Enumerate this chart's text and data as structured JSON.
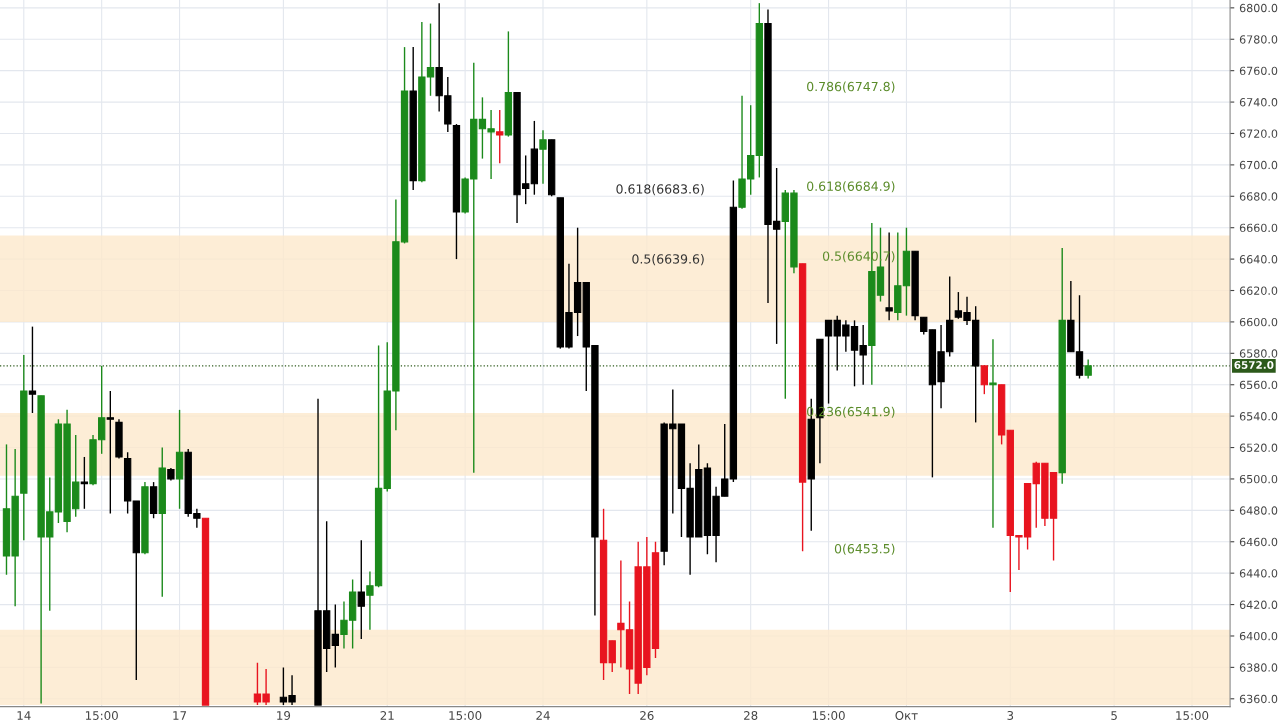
{
  "chart_data": {
    "type": "candlestick",
    "categories": [
      null,
      null,
      "14",
      null,
      null,
      null,
      null,
      null,
      null,
      null,
      null,
      "15:00",
      null,
      null,
      null,
      null,
      null,
      null,
      null,
      null,
      "17",
      null,
      null,
      null,
      null,
      null,
      null,
      null,
      null,
      null,
      null,
      null,
      "19",
      null,
      null,
      null,
      null,
      null,
      null,
      null,
      null,
      null,
      null,
      null,
      "21",
      null,
      null,
      null,
      null,
      null,
      null,
      null,
      null,
      "15:00",
      null,
      null,
      null,
      null,
      null,
      null,
      null,
      null,
      "24",
      null,
      null,
      null,
      null,
      null,
      null,
      null,
      null,
      null,
      null,
      null,
      "26",
      null,
      null,
      null,
      null,
      null,
      null,
      null,
      null,
      null,
      null,
      null,
      "28",
      null,
      null,
      null,
      null,
      null,
      null,
      null,
      null,
      "15:00",
      null,
      null,
      null,
      null,
      null,
      null,
      null,
      null,
      "Окт",
      null,
      null,
      null,
      null,
      null,
      null,
      null,
      null,
      null,
      null,
      null,
      "3",
      null,
      null,
      null,
      null,
      null,
      null,
      null,
      null,
      null,
      null,
      null,
      "5",
      null,
      null,
      null,
      null,
      null,
      null,
      null,
      null,
      "15:00",
      null,
      null,
      null,
      null
    ],
    "ohlc": [
      [
        6451,
        6522,
        6439,
        6481
      ],
      [
        6451,
        6519,
        6419,
        6489
      ],
      [
        6491,
        6579,
        6461,
        6556
      ],
      [
        6556,
        6597,
        6542,
        6554
      ],
      [
        6463,
        6553,
        6357,
        6553
      ],
      [
        6463,
        6501,
        6416,
        6479
      ],
      [
        6479,
        6538,
        6472,
        6535
      ],
      [
        6473,
        6544,
        6466,
        6535
      ],
      [
        6481,
        6528,
        6476,
        6498
      ],
      [
        6498,
        6514,
        6481,
        6497
      ],
      [
        6497,
        6528,
        6496,
        6525
      ],
      [
        6525,
        6572,
        6516,
        6539
      ],
      [
        6539,
        6556,
        6478,
        6538
      ],
      [
        6536,
        6538,
        6513,
        6514
      ],
      [
        6513,
        6517,
        6478,
        6486
      ],
      [
        6486,
        6486,
        6372,
        6453
      ],
      [
        6453,
        6498,
        6452,
        6495
      ],
      [
        6495,
        6498,
        6475,
        6478
      ],
      [
        6478,
        6520,
        6425,
        6507
      ],
      [
        6506,
        6507,
        6499,
        6500
      ],
      [
        6500,
        6544,
        6481,
        6517
      ],
      [
        6517,
        6519,
        6476,
        6478
      ],
      [
        6478,
        6481,
        6469,
        6475
      ],
      [
        6475,
        6475,
        6356,
        6356
      ],
      null,
      null,
      null,
      null,
      null,
      [
        6363,
        6383,
        6356,
        6358
      ],
      [
        6363,
        6379,
        6356,
        6358
      ],
      null,
      [
        6361,
        6380,
        6356,
        6358
      ],
      [
        6362,
        6375,
        6356,
        6358
      ],
      null,
      null,
      [
        6416,
        6551,
        6356,
        6356
      ],
      [
        6416,
        6473,
        6377,
        6392
      ],
      [
        6401,
        6420,
        6380,
        6394
      ],
      [
        6401,
        6422,
        6392,
        6410
      ],
      [
        6410,
        6436,
        6392,
        6428
      ],
      [
        6428,
        6461,
        6398,
        6419
      ],
      [
        6426,
        6441,
        6404,
        6432
      ],
      [
        6432,
        6585,
        6431,
        6494
      ],
      [
        6494,
        6587,
        6492,
        6556
      ],
      [
        6556,
        6678,
        6531,
        6651
      ],
      [
        6651,
        6775,
        6650,
        6747
      ],
      [
        6747,
        6775,
        6684,
        6690
      ],
      [
        6690,
        6791,
        6689,
        6756
      ],
      [
        6756,
        6790,
        6744,
        6762
      ],
      [
        6762,
        6803,
        6734,
        6744
      ],
      [
        6744,
        6756,
        6721,
        6726
      ],
      [
        6725,
        6726,
        6640,
        6670
      ],
      [
        6670,
        6692,
        6669,
        6691
      ],
      [
        6691,
        6765,
        6504,
        6729
      ],
      [
        6723,
        6743,
        6704,
        6729
      ],
      [
        6721,
        6735,
        6691,
        6723
      ],
      [
        6721,
        6735,
        6701,
        6719
      ],
      [
        6719,
        6785,
        6718,
        6746
      ],
      [
        6746,
        6746,
        6663,
        6681
      ],
      [
        6688,
        6706,
        6675,
        6685
      ],
      [
        6710,
        6728,
        6681,
        6688
      ],
      [
        6710,
        6722,
        6688,
        6716
      ],
      [
        6716,
        6716,
        6680,
        6681
      ],
      [
        6679,
        6679,
        6583,
        6584
      ],
      [
        6606,
        6637,
        6583,
        6584
      ],
      [
        6625,
        6660,
        6591,
        6606
      ],
      [
        6625,
        6625,
        6556,
        6584
      ],
      [
        6585,
        6585,
        6413,
        6463
      ],
      [
        6461,
        6481,
        6372,
        6383
      ],
      [
        6397,
        6397,
        6377,
        6383
      ],
      [
        6408,
        6448,
        6380,
        6404
      ],
      [
        6404,
        6422,
        6363,
        6379
      ],
      [
        6444,
        6460,
        6363,
        6370
      ],
      [
        6444,
        6463,
        6375,
        6380
      ],
      [
        6453,
        6460,
        6386,
        6392
      ],
      [
        6535,
        6536,
        6445,
        6454
      ],
      [
        6535,
        6557,
        6478,
        6532
      ],
      [
        6535,
        6535,
        6463,
        6494
      ],
      [
        6494,
        6510,
        6439,
        6463
      ],
      [
        6506,
        6522,
        6463,
        6463
      ],
      [
        6507,
        6510,
        6452,
        6464
      ],
      [
        6489,
        6495,
        6447,
        6464
      ],
      [
        6500,
        6535,
        6489,
        6489
      ],
      [
        6673,
        6690,
        6498,
        6500
      ],
      [
        6673,
        6744,
        6672,
        6691
      ],
      [
        6691,
        6738,
        6681,
        6706
      ],
      [
        6706,
        6803,
        6692,
        6790
      ],
      [
        6790,
        6799,
        6612,
        6662
      ],
      [
        6664,
        6698,
        6586,
        6659
      ],
      [
        6664,
        6684,
        6551,
        6682
      ],
      [
        6635,
        6684,
        6631,
        6682
      ],
      [
        6637,
        6637,
        6454,
        6498
      ],
      [
        6538,
        6551,
        6467,
        6500
      ],
      [
        6589,
        6589,
        6510,
        6539
      ],
      [
        6601,
        6601,
        6548,
        6591
      ],
      [
        6601,
        6604,
        6569,
        6591
      ],
      [
        6598,
        6601,
        6581,
        6591
      ],
      [
        6597,
        6601,
        6559,
        6582
      ],
      [
        6585,
        6598,
        6560,
        6579
      ],
      [
        6585,
        6663,
        6560,
        6632
      ],
      [
        6617,
        6660,
        6613,
        6635
      ],
      [
        6609,
        6657,
        6601,
        6607
      ],
      [
        6606,
        6657,
        6601,
        6623
      ],
      [
        6623,
        6660,
        6604,
        6645
      ],
      [
        6645,
        6645,
        6601,
        6604
      ],
      [
        6603,
        6603,
        6592,
        6594
      ],
      [
        6595,
        6595,
        6501,
        6560
      ],
      [
        6581,
        6598,
        6545,
        6562
      ],
      [
        6601,
        6629,
        6578,
        6581
      ],
      [
        6607,
        6619,
        6602,
        6603
      ],
      [
        6606,
        6616,
        6598,
        6601
      ],
      [
        6601,
        6610,
        6536,
        6572
      ],
      [
        6572,
        6572,
        6554,
        6560
      ],
      [
        6560,
        6589,
        6469,
        6561
      ],
      [
        6560,
        6560,
        6522,
        6528
      ],
      [
        6531,
        6531,
        6428,
        6464
      ],
      [
        6464,
        6464,
        6442,
        6463
      ],
      [
        6497,
        6497,
        6455,
        6463
      ],
      [
        6510,
        6511,
        6469,
        6497
      ],
      [
        6510,
        6510,
        6470,
        6475
      ],
      [
        6504,
        6504,
        6448,
        6475
      ],
      [
        6504,
        6647,
        6497,
        6601
      ],
      [
        6601,
        6626,
        6581,
        6581
      ],
      [
        6581,
        6617,
        6564,
        6566
      ],
      [
        6566,
        6576,
        6564,
        6572
      ],
      null,
      null,
      null,
      null,
      null,
      null,
      null,
      null,
      null,
      null,
      null,
      null,
      null,
      null,
      null,
      null
    ],
    "colors": [
      "#1b8a1b",
      "#1b8a1b",
      "#1b8a1b",
      "#000000",
      "#1b8a1b",
      "#1b8a1b",
      "#1b8a1b",
      "#1b8a1b",
      "#1b8a1b",
      "#000000",
      "#1b8a1b",
      "#1b8a1b",
      "#000000",
      "#000000",
      "#000000",
      "#000000",
      "#1b8a1b",
      "#000000",
      "#1b8a1b",
      "#000000",
      "#1b8a1b",
      "#000000",
      "#000000",
      "#e8141f",
      null,
      null,
      null,
      null,
      null,
      "#e8141f",
      "#e8141f",
      null,
      "#000000",
      "#000000",
      null,
      null,
      "#000000",
      "#000000",
      "#000000",
      "#1b8a1b",
      "#1b8a1b",
      "#000000",
      "#1b8a1b",
      "#1b8a1b",
      "#1b8a1b",
      "#1b8a1b",
      "#1b8a1b",
      "#000000",
      "#1b8a1b",
      "#1b8a1b",
      "#000000",
      "#000000",
      "#000000",
      "#1b8a1b",
      "#1b8a1b",
      "#1b8a1b",
      "#1b8a1b",
      "#e8141f",
      "#1b8a1b",
      "#000000",
      "#000000",
      "#000000",
      "#1b8a1b",
      "#000000",
      "#000000",
      "#000000",
      "#000000",
      "#000000",
      "#000000",
      "#e8141f",
      "#e8141f",
      "#e8141f",
      "#e8141f",
      "#e8141f",
      "#e8141f",
      "#e8141f",
      "#000000",
      "#000000",
      "#000000",
      "#000000",
      "#000000",
      "#000000",
      "#000000",
      "#000000",
      "#000000",
      "#1b8a1b",
      "#1b8a1b",
      "#1b8a1b",
      "#000000",
      "#000000",
      "#1b8a1b",
      "#1b8a1b",
      "#e8141f",
      "#000000",
      "#000000",
      "#000000",
      "#000000",
      "#000000",
      "#000000",
      "#000000",
      "#1b8a1b",
      "#1b8a1b",
      "#000000",
      "#1b8a1b",
      "#1b8a1b",
      "#000000",
      "#000000",
      "#000000",
      "#000000",
      "#000000",
      "#000000",
      "#000000",
      "#000000",
      "#e8141f",
      "#1b8a1b",
      "#e8141f",
      "#e8141f",
      "#e8141f",
      "#e8141f",
      "#e8141f",
      "#e8141f",
      "#e8141f",
      "#1b8a1b",
      "#000000",
      "#000000",
      "#1b8a1b",
      null,
      null,
      null,
      null,
      null,
      null,
      null,
      null,
      null,
      null,
      null,
      null,
      null,
      null,
      null,
      null
    ],
    "ylim": [
      6355,
      6805
    ],
    "yticks": [
      {
        "value": 6360,
        "label": "6360.0"
      },
      {
        "value": 6380,
        "label": "6380.0"
      },
      {
        "value": 6400,
        "label": "6400.0"
      },
      {
        "value": 6420,
        "label": "6420.0"
      },
      {
        "value": 6440,
        "label": "6440.0"
      },
      {
        "value": 6460,
        "label": "6460.0"
      },
      {
        "value": 6480,
        "label": "6480.0"
      },
      {
        "value": 6500,
        "label": "6500.0"
      },
      {
        "value": 6520,
        "label": "6520.0"
      },
      {
        "value": 6540,
        "label": "6540.0"
      },
      {
        "value": 6560,
        "label": "6560.0"
      },
      {
        "value": 6580,
        "label": "6580.0"
      },
      {
        "value": 6600,
        "label": "6600.0"
      },
      {
        "value": 6620,
        "label": "6620.0"
      },
      {
        "value": 6640,
        "label": "6640.0"
      },
      {
        "value": 6660,
        "label": "6660.0"
      },
      {
        "value": 6680,
        "label": "6680.0"
      },
      {
        "value": 6700,
        "label": "6700.0"
      },
      {
        "value": 6720,
        "label": "6720.0"
      },
      {
        "value": 6740,
        "label": "6740.0"
      },
      {
        "value": 6760,
        "label": "6760.0"
      },
      {
        "value": 6780,
        "label": "6780.0"
      },
      {
        "value": 6800,
        "label": "6800.0"
      }
    ],
    "grid": true,
    "bands": [
      {
        "axis": "y",
        "from": 6600,
        "to": 6655,
        "color": "#fde8cc"
      },
      {
        "axis": "y",
        "from": 6502,
        "to": 6542,
        "color": "#fde8cc"
      },
      {
        "axis": "y",
        "from": 6356,
        "to": 6404,
        "color": "#fde8cc"
      }
    ],
    "ref_lines": [
      {
        "axis": "y",
        "value": 6572,
        "label": "6572.0",
        "color": "#2d5a1b",
        "line_style": "dotted"
      }
    ],
    "annotations": [
      "0.618(6683.6)",
      "0.5(6639.6)",
      "0.786(6747.8)",
      "0.618(6684.9)",
      "0.5(6640.7)",
      "0.236(6541.9)",
      "0(6453.5)"
    ]
  }
}
